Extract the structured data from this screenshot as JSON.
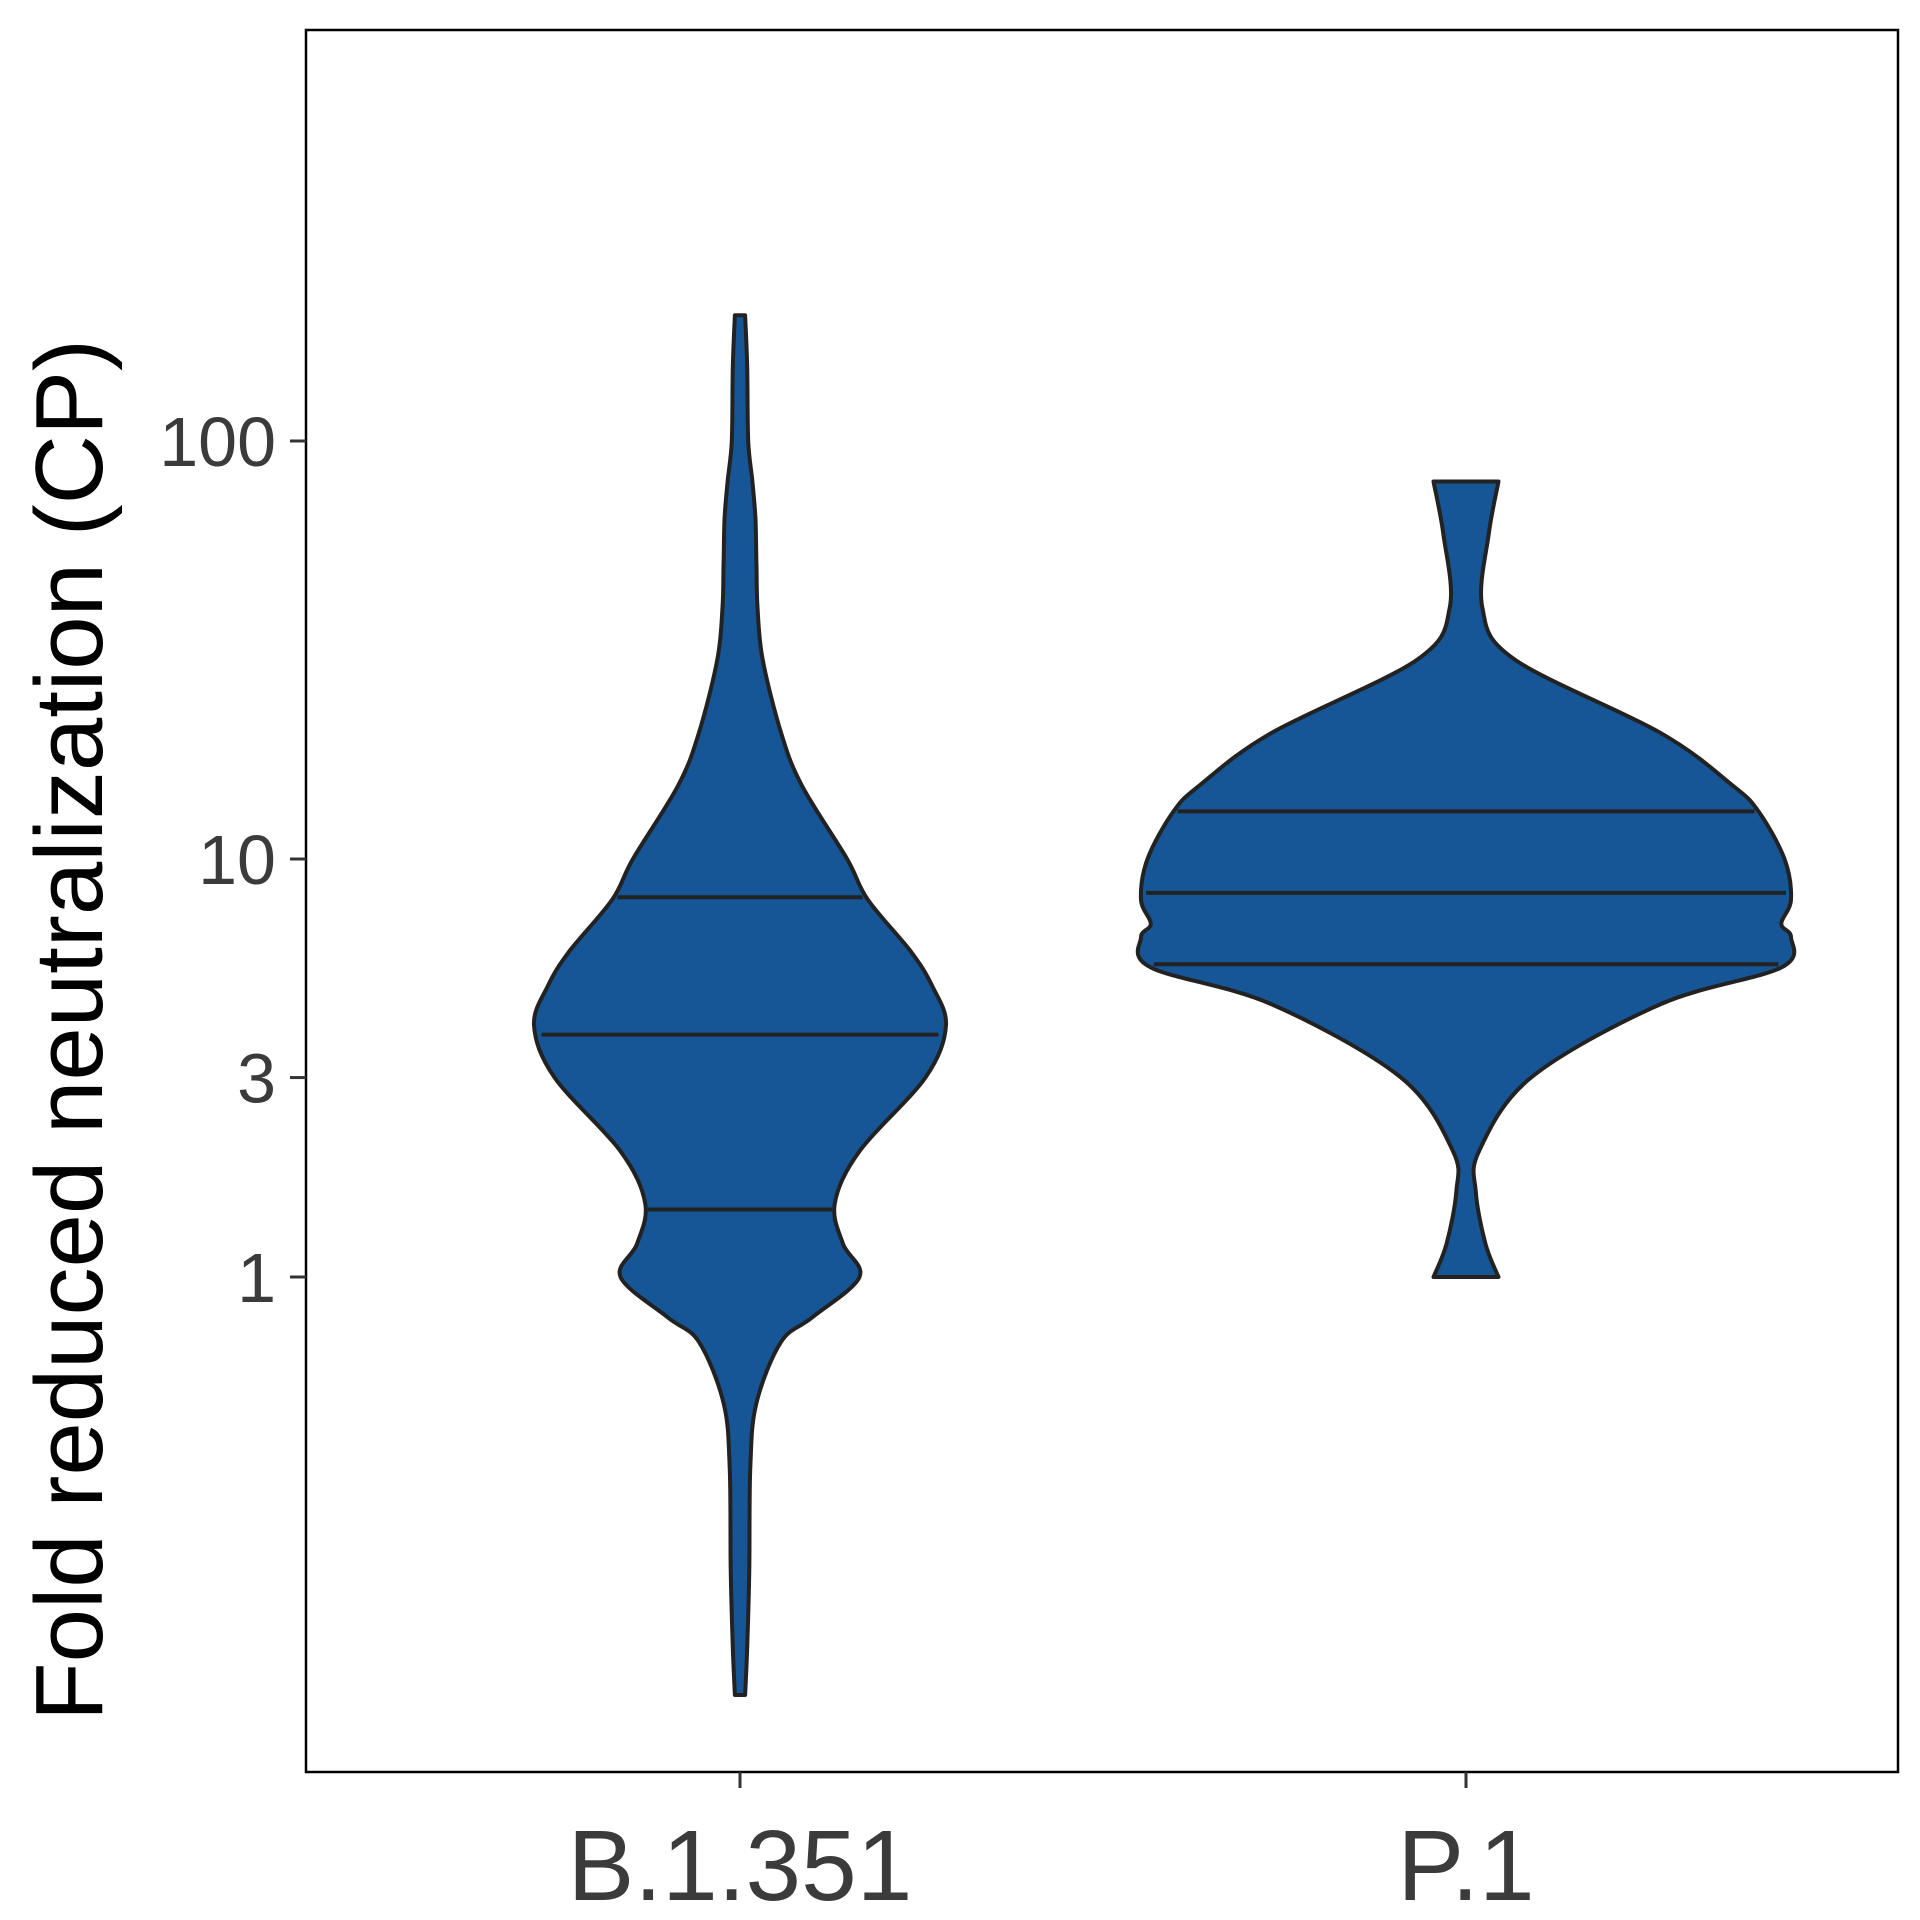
{
  "chart_data": {
    "type": "violin",
    "title": "",
    "xlabel": "",
    "ylabel": "Fold reduced neutralization (CP)",
    "y_scale": "log10",
    "ylim": [
      0.09,
      300
    ],
    "y_ticks": [
      {
        "value": 1,
        "label": "1"
      },
      {
        "value": 3,
        "label": "3"
      },
      {
        "value": 10,
        "label": "10"
      },
      {
        "value": 100,
        "label": "100"
      }
    ],
    "categories": [
      "B.1.351",
      "P.1"
    ],
    "grid": false,
    "legend": "none",
    "colors": {
      "fill": "#165697",
      "stroke": "#222222",
      "frame": "#000000"
    },
    "series": [
      {
        "category": "B.1.351",
        "min": 0.1,
        "max": 200,
        "quartiles": [
          1.45,
          3.8,
          8.1
        ],
        "density": [
          [
            200,
            0.025
          ],
          [
            150,
            0.035
          ],
          [
            100,
            0.04
          ],
          [
            80,
            0.06
          ],
          [
            65,
            0.075
          ],
          [
            50,
            0.08
          ],
          [
            40,
            0.085
          ],
          [
            30,
            0.11
          ],
          [
            20,
            0.2
          ],
          [
            15,
            0.3
          ],
          [
            10,
            0.52
          ],
          [
            8,
            0.62
          ],
          [
            6,
            0.83
          ],
          [
            5,
            0.93
          ],
          [
            4,
            1.0
          ],
          [
            3,
            0.9
          ],
          [
            2,
            0.58
          ],
          [
            1.5,
            0.46
          ],
          [
            1.2,
            0.5
          ],
          [
            1,
            0.58
          ],
          [
            0.8,
            0.35
          ],
          [
            0.7,
            0.2
          ],
          [
            0.5,
            0.08
          ],
          [
            0.35,
            0.05
          ],
          [
            0.2,
            0.045
          ],
          [
            0.13,
            0.035
          ],
          [
            0.1,
            0.025
          ]
        ]
      },
      {
        "category": "P.1",
        "min": 1,
        "max": 80,
        "quartiles": [
          5.6,
          8.3,
          13
        ],
        "density": [
          [
            80,
            0.1
          ],
          [
            60,
            0.07
          ],
          [
            40,
            0.05
          ],
          [
            30,
            0.15
          ],
          [
            20,
            0.6
          ],
          [
            15,
            0.82
          ],
          [
            13,
            0.9
          ],
          [
            10,
            0.98
          ],
          [
            8,
            1.0
          ],
          [
            7,
            0.97
          ],
          [
            6.5,
            1.0
          ],
          [
            5.5,
            0.97
          ],
          [
            4.5,
            0.6
          ],
          [
            3,
            0.2
          ],
          [
            2,
            0.04
          ],
          [
            1.6,
            0.03
          ],
          [
            1.2,
            0.06
          ],
          [
            1,
            0.1
          ]
        ]
      }
    ]
  }
}
